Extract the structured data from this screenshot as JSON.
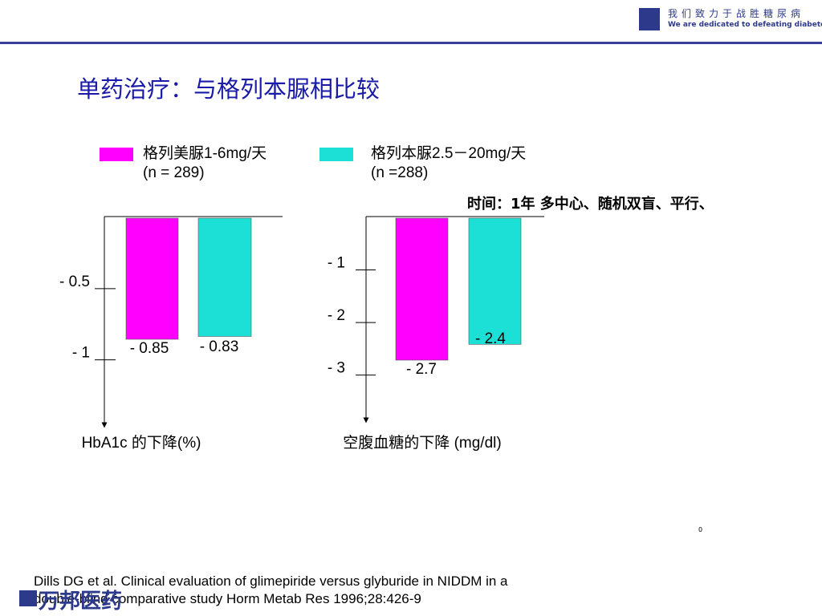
{
  "header": {
    "slogan_cn": "我们致力于战胜糖尿病",
    "slogan_en": "We are dedicated to defeating diabetes",
    "brand_color": "#2d3a8c"
  },
  "title": "单药治疗：与格列本脲相比较",
  "legend": [
    {
      "line1": "格列美脲1-6mg/天",
      "line2": "(n = 289)",
      "color": "#ff00ff"
    },
    {
      "line1": "格列本脲2.5－20mg/天",
      "line2": "(n =288)",
      "color": "#1ce0d6"
    }
  ],
  "study_note": "时间：1年 多中心、随机双盲、平行、",
  "small_note": "0",
  "citation": {
    "line1": "Dills DG et al. Clinical evaluation of glimepiride versus glyburide in NIDDM in a",
    "line2": "double-blind comparative study Horm Metab Res 1996;28:426-9"
  },
  "bottom_logo": "万邦医药",
  "chart_data": [
    {
      "type": "bar",
      "xlabel": "HbA1c 的下降(%)",
      "ytick_labels": [
        "- 0.5",
        "- 1"
      ],
      "yticks": [
        -0.5,
        -1
      ],
      "ylim": [
        0,
        -1.05
      ],
      "series": [
        {
          "name": "格列美脲1-6mg/天",
          "values": [
            -0.85
          ],
          "label": "- 0.85"
        },
        {
          "name": "格列本脲2.5－20mg/天",
          "values": [
            -0.83
          ],
          "label": "- 0.83"
        }
      ]
    },
    {
      "type": "bar",
      "xlabel": "空腹血糖的下降 (mg/dl)",
      "ytick_labels": [
        "- 1",
        "- 2",
        "- 3"
      ],
      "yticks": [
        -1,
        -2,
        -3
      ],
      "ylim": [
        0,
        -3.4
      ],
      "series": [
        {
          "name": "格列美脲1-6mg/天",
          "values": [
            -2.7
          ],
          "label": "- 2.7"
        },
        {
          "name": "格列本脲2.5－20mg/天",
          "values": [
            -2.4
          ],
          "label": "- 2.4"
        }
      ]
    }
  ]
}
